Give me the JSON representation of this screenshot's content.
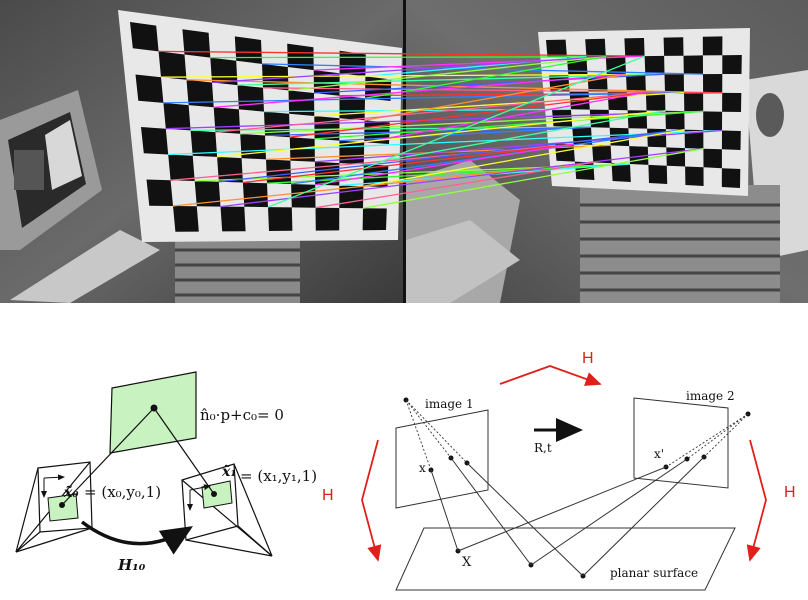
{
  "left_figure": {
    "plane_equation": "n̂₀·p+c₀= 0",
    "point0_symbol": "x̃₀",
    "point0_coords": "= (x₀,y₀,1)",
    "point1_symbol": "x̃₁",
    "point1_coords": "= (x₁,y₁,1)",
    "homography_label": "H₁₀"
  },
  "right_figure": {
    "image1_label": "image 1",
    "image2_label": "image 2",
    "motion_label": "R,t",
    "point_x_label": "x",
    "point_xprime_label": "x'",
    "world_point_label": "X",
    "surface_label": "planar surface",
    "homography_top": "H",
    "homography_left": "H",
    "homography_right": "H"
  },
  "colors": {
    "plane_fill": "#c8f2c0",
    "arrow_red": "#e0201a",
    "photo_bg": "#6e6e6e"
  }
}
